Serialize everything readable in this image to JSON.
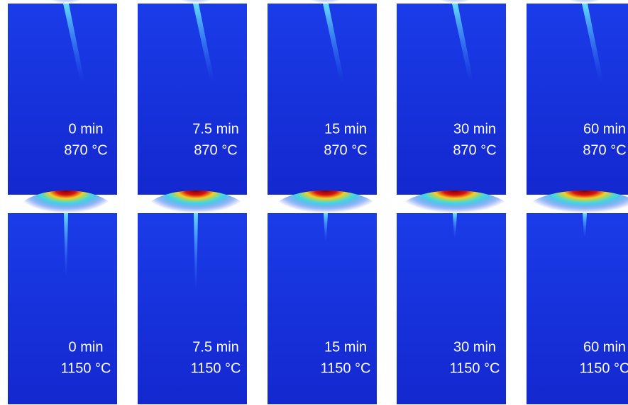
{
  "rows": [
    {
      "panels": [
        {
          "time": "0 min",
          "temperature": "870 °C"
        },
        {
          "time": "7.5 min",
          "temperature": "870 °C"
        },
        {
          "time": "15 min",
          "temperature": "870 °C"
        },
        {
          "time": "30 min",
          "temperature": "870 °C"
        },
        {
          "time": "60 min",
          "temperature": "870 °C"
        }
      ]
    },
    {
      "panels": [
        {
          "time": "0 min",
          "temperature": "1150 °C"
        },
        {
          "time": "7.5 min",
          "temperature": "1150 °C"
        },
        {
          "time": "15 min",
          "temperature": "1150 °C"
        },
        {
          "time": "30 min",
          "temperature": "1150 °C"
        },
        {
          "time": "60 min",
          "temperature": "1150 °C"
        }
      ]
    }
  ]
}
